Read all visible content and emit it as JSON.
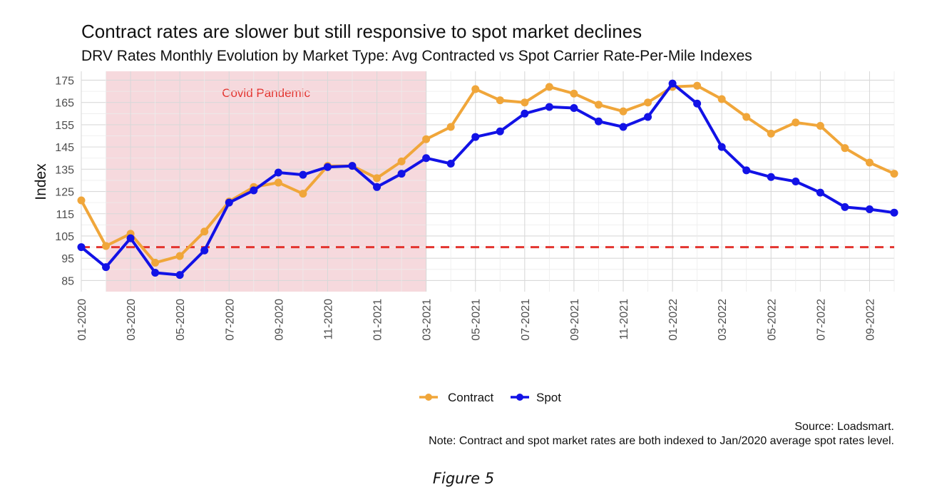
{
  "chart_data": {
    "type": "line",
    "title": "Contract rates are slower but still responsive to spot market declines",
    "subtitle": "DRV Rates Monthly Evolution by Market Type: Avg Contracted vs Spot Carrier Rate-Per-Mile Indexes",
    "xlabel": "",
    "ylabel": "Index",
    "ylim": [
      80,
      179
    ],
    "y_ticks": [
      85,
      95,
      105,
      115,
      125,
      135,
      145,
      155,
      165,
      175
    ],
    "x_tick_labels": [
      "01-2020",
      "03-2020",
      "05-2020",
      "07-2020",
      "09-2020",
      "11-2020",
      "01-2021",
      "03-2021",
      "05-2021",
      "07-2021",
      "09-2021",
      "11-2021",
      "01-2022",
      "03-2022",
      "05-2022",
      "07-2022",
      "09-2022"
    ],
    "x": [
      "01-2020",
      "02-2020",
      "03-2020",
      "04-2020",
      "05-2020",
      "06-2020",
      "07-2020",
      "08-2020",
      "09-2020",
      "10-2020",
      "11-2020",
      "12-2020",
      "01-2021",
      "02-2021",
      "03-2021",
      "04-2021",
      "05-2021",
      "06-2021",
      "07-2021",
      "08-2021",
      "09-2021",
      "10-2021",
      "11-2021",
      "12-2021",
      "01-2022",
      "02-2022",
      "03-2022",
      "04-2022",
      "05-2022",
      "06-2022",
      "07-2022",
      "08-2022",
      "09-2022",
      "10-2022"
    ],
    "series": [
      {
        "name": "Contract",
        "color": "#F0A63A",
        "values": [
          121,
          100.5,
          106,
          93,
          96,
          107,
          120.5,
          127,
          129,
          124,
          136.5,
          136.5,
          131,
          138.5,
          148.5,
          154,
          171,
          166,
          165,
          172,
          169,
          164,
          161,
          165,
          172,
          172.5,
          166.5,
          158.5,
          151,
          156,
          154.5,
          144.5,
          138,
          133
        ]
      },
      {
        "name": "Spot",
        "color": "#1212E6",
        "values": [
          100,
          91,
          104,
          88.5,
          87.5,
          98.5,
          120,
          125.5,
          133.5,
          132.5,
          136,
          136.5,
          127,
          133,
          140,
          137.5,
          149.5,
          152,
          160,
          163,
          162.5,
          156.5,
          154,
          158.5,
          173.5,
          164.5,
          145,
          134.5,
          131.5,
          129.5,
          124.5,
          118,
          117,
          115.5
        ]
      }
    ],
    "reference_line": {
      "y": 100,
      "color": "#E3342F",
      "style": "dashed"
    },
    "shaded_region": {
      "label": "Covid Pandemic",
      "start": "02-2020",
      "end": "03-2021",
      "fill": "#F6D9DD",
      "label_color": "#E3342F"
    },
    "legend": {
      "position": "bottom",
      "entries": [
        "Contract",
        "Spot"
      ]
    },
    "grid": true,
    "caption": [
      "Source: Loadsmart.",
      "Note: Contract and spot market rates are both indexed to Jan/2020 average spot rates level."
    ]
  },
  "figure_caption": "Figure 5"
}
